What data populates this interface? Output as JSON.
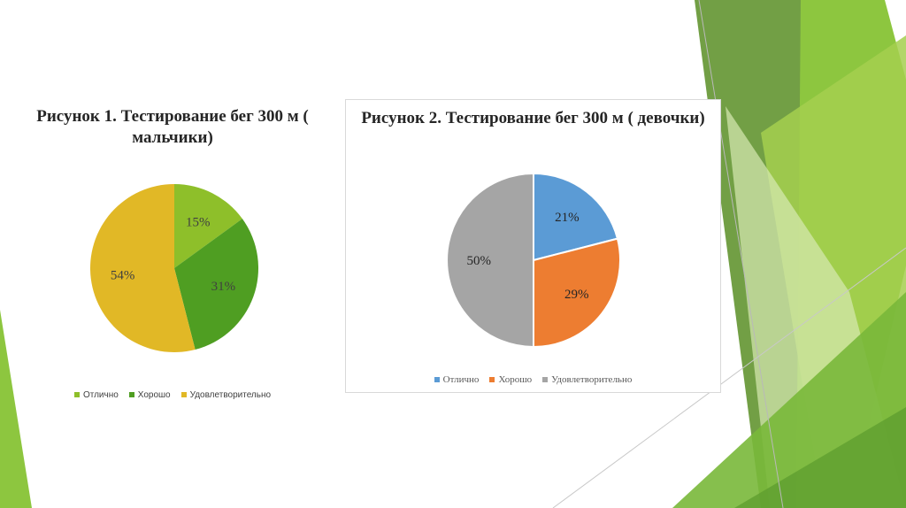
{
  "chart_data": [
    {
      "type": "pie",
      "title": "Рисунок 1. Тестирование бег 300 м ( мальчики)",
      "categories": [
        "Отлично",
        "Хорошо",
        "Удовлетворительно"
      ],
      "values": [
        15,
        31,
        54
      ],
      "data_labels": [
        "15%",
        "31%",
        "54%"
      ],
      "colors": [
        "#8ebf2a",
        "#4f9e22",
        "#e1b826"
      ],
      "legend": "bottom"
    },
    {
      "type": "pie",
      "title": "Рисунок 2. Тестирование  бег 300 м ( девочки)",
      "categories": [
        "Отлично",
        "Хорошо",
        "Удовлетворительно"
      ],
      "values": [
        21,
        29,
        50
      ],
      "data_labels": [
        "21%",
        "29%",
        "50%"
      ],
      "colors": [
        "#5b9bd5",
        "#ed7d31",
        "#a5a5a5"
      ],
      "legend": "bottom"
    }
  ]
}
